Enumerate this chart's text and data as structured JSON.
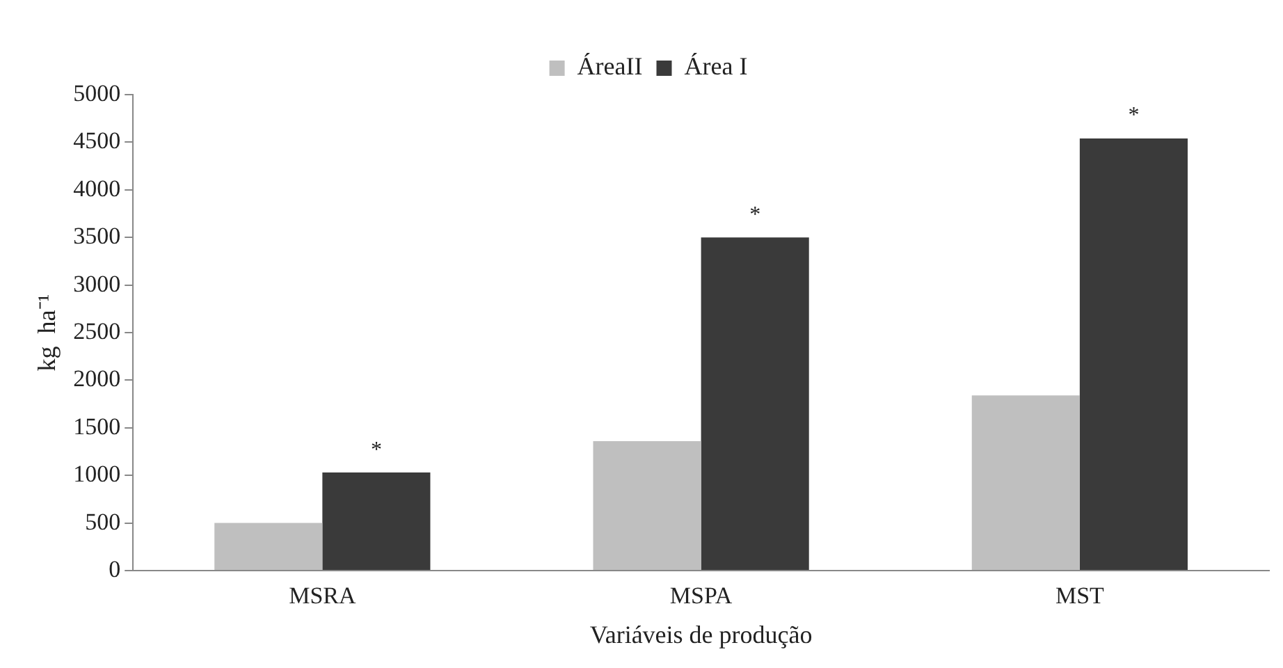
{
  "chart_data": {
    "type": "bar",
    "xlabel": "Variáveis de produção",
    "ylabel": "kg  ha⁻¹",
    "categories": [
      "MSRA",
      "MSPA",
      "MST"
    ],
    "series": [
      {
        "name": "ÁreaII",
        "color": "#bfbfbf",
        "values": [
          500,
          1360,
          1840
        ]
      },
      {
        "name": "Área I",
        "color": "#3a3a3a",
        "values": [
          1030,
          3500,
          4540
        ]
      }
    ],
    "ylim": [
      0,
      5000
    ],
    "yticks": [
      0,
      500,
      1000,
      1500,
      2000,
      2500,
      3000,
      3500,
      4000,
      4500,
      5000
    ],
    "grid": false,
    "legend": "top",
    "annotations": [
      {
        "text": "*",
        "x": "MSRA",
        "y": 1030
      },
      {
        "text": "*",
        "x": "MSPA",
        "y": 3500
      },
      {
        "text": "*",
        "x": "MST",
        "y": 4540
      }
    ]
  }
}
